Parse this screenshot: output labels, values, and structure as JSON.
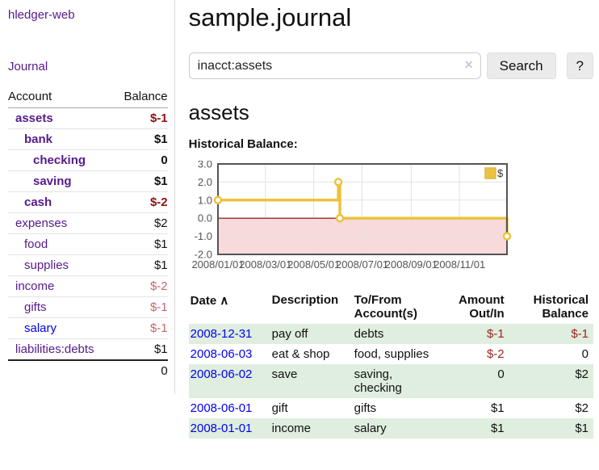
{
  "app": {
    "title": "hledger-web"
  },
  "nav": {
    "journal": "Journal"
  },
  "sidebar": {
    "account_header": "Account",
    "balance_header": "Balance",
    "accounts": [
      {
        "name": "assets",
        "indent": 1,
        "balance": "$-1",
        "bold": true,
        "neg": "strong",
        "link": "visited"
      },
      {
        "name": "bank",
        "indent": 2,
        "balance": "$1",
        "bold": true,
        "neg": "",
        "link": "visited"
      },
      {
        "name": "checking",
        "indent": 3,
        "balance": "0",
        "bold": true,
        "neg": "",
        "link": "visited"
      },
      {
        "name": "saving",
        "indent": 3,
        "balance": "$1",
        "bold": true,
        "neg": "",
        "link": "visited"
      },
      {
        "name": "cash",
        "indent": 2,
        "balance": "$-2",
        "bold": true,
        "neg": "strong",
        "link": "visited"
      },
      {
        "name": "expenses",
        "indent": 1,
        "balance": "$2",
        "bold": false,
        "neg": "",
        "link": "visited"
      },
      {
        "name": "food",
        "indent": 2,
        "balance": "$1",
        "bold": false,
        "neg": "",
        "link": "visited"
      },
      {
        "name": "supplies",
        "indent": 2,
        "balance": "$1",
        "bold": false,
        "neg": "",
        "link": "visited"
      },
      {
        "name": "income",
        "indent": 1,
        "balance": "$-2",
        "bold": false,
        "neg": "light",
        "link": "visited"
      },
      {
        "name": "gifts",
        "indent": 2,
        "balance": "$-1",
        "bold": false,
        "neg": "light",
        "link": "visited"
      },
      {
        "name": "salary",
        "indent": 2,
        "balance": "$-1",
        "bold": false,
        "neg": "light",
        "link": "new"
      },
      {
        "name": "liabilities:debts",
        "indent": 1,
        "balance": "$1",
        "bold": false,
        "neg": "",
        "link": "visited"
      }
    ],
    "total": "0"
  },
  "header": {
    "title": "sample.journal"
  },
  "search": {
    "value": "inacct:assets",
    "clear_icon": "✕",
    "button_label": "Search",
    "help_label": "?"
  },
  "account_view": {
    "title": "assets",
    "chart_heading": "Historical Balance:"
  },
  "chart_data": {
    "type": "line",
    "step": true,
    "title": "Historical Balance",
    "series": [
      {
        "name": "$",
        "color": "#edc240",
        "points": [
          [
            "2008-01-01",
            1
          ],
          [
            "2008-06-01",
            2
          ],
          [
            "2008-06-03",
            0
          ],
          [
            "2008-12-31",
            -1
          ]
        ]
      }
    ],
    "x_range": [
      "2008-01-01",
      "2008-12-31"
    ],
    "x_ticks": [
      "2008/01/01",
      "2008/03/01",
      "2008/05/01",
      "2008/07/01",
      "2008/09/01",
      "2008/11/01"
    ],
    "y_ticks": [
      "3.0",
      "2.0",
      "1.0",
      "0.0",
      "-1.0",
      "-2.0"
    ],
    "ylim": [
      -2,
      3
    ],
    "grid": true,
    "legend_position": "top-right",
    "legend_label": "$",
    "negative_region_color": "#f8dada",
    "zero_line_color": "#8b0000",
    "border_color": "#545454"
  },
  "register": {
    "headers": {
      "date": "Date",
      "sort_indicator": "∧",
      "description": "Description",
      "accounts": "To/From Account(s)",
      "amount": "Amount Out/In",
      "balance": "Historical Balance"
    },
    "rows": [
      {
        "date": "2008-12-31",
        "description": "pay off",
        "accounts": "debts",
        "amount": "$-1",
        "amount_neg": true,
        "balance": "$-1",
        "balance_neg": true
      },
      {
        "date": "2008-06-03",
        "description": "eat & shop",
        "accounts": "food, supplies",
        "amount": "$-2",
        "amount_neg": true,
        "balance": "0",
        "balance_neg": false
      },
      {
        "date": "2008-06-02",
        "description": "save",
        "accounts": "saving, checking",
        "amount": "0",
        "amount_neg": false,
        "balance": "$2",
        "balance_neg": false
      },
      {
        "date": "2008-06-01",
        "description": "gift",
        "accounts": "gifts",
        "amount": "$1",
        "amount_neg": false,
        "balance": "$2",
        "balance_neg": false
      },
      {
        "date": "2008-01-01",
        "description": "income",
        "accounts": "salary",
        "amount": "$1",
        "amount_neg": false,
        "balance": "$1",
        "balance_neg": false
      }
    ]
  }
}
